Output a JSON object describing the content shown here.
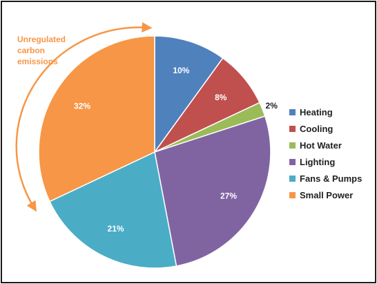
{
  "chart_data": {
    "type": "pie",
    "categories": [
      "Heating",
      "Cooling",
      "Hot Water",
      "Lighting",
      "Fans & Pumps",
      "Small Power"
    ],
    "values": [
      10,
      8,
      2,
      27,
      21,
      32
    ],
    "data_labels": [
      "10%",
      "8%",
      "2%",
      "27%",
      "21%",
      "32%"
    ],
    "colors": [
      "#4F81BD",
      "#C0504D",
      "#9BBB59",
      "#8064A2",
      "#4BACC6",
      "#F79646"
    ],
    "legend_placement": "right",
    "annotation": {
      "lines": [
        "Unregulated",
        "carbon",
        "emissions"
      ],
      "color": "#F79646",
      "icon": "curved-double-arrow-icon"
    }
  }
}
